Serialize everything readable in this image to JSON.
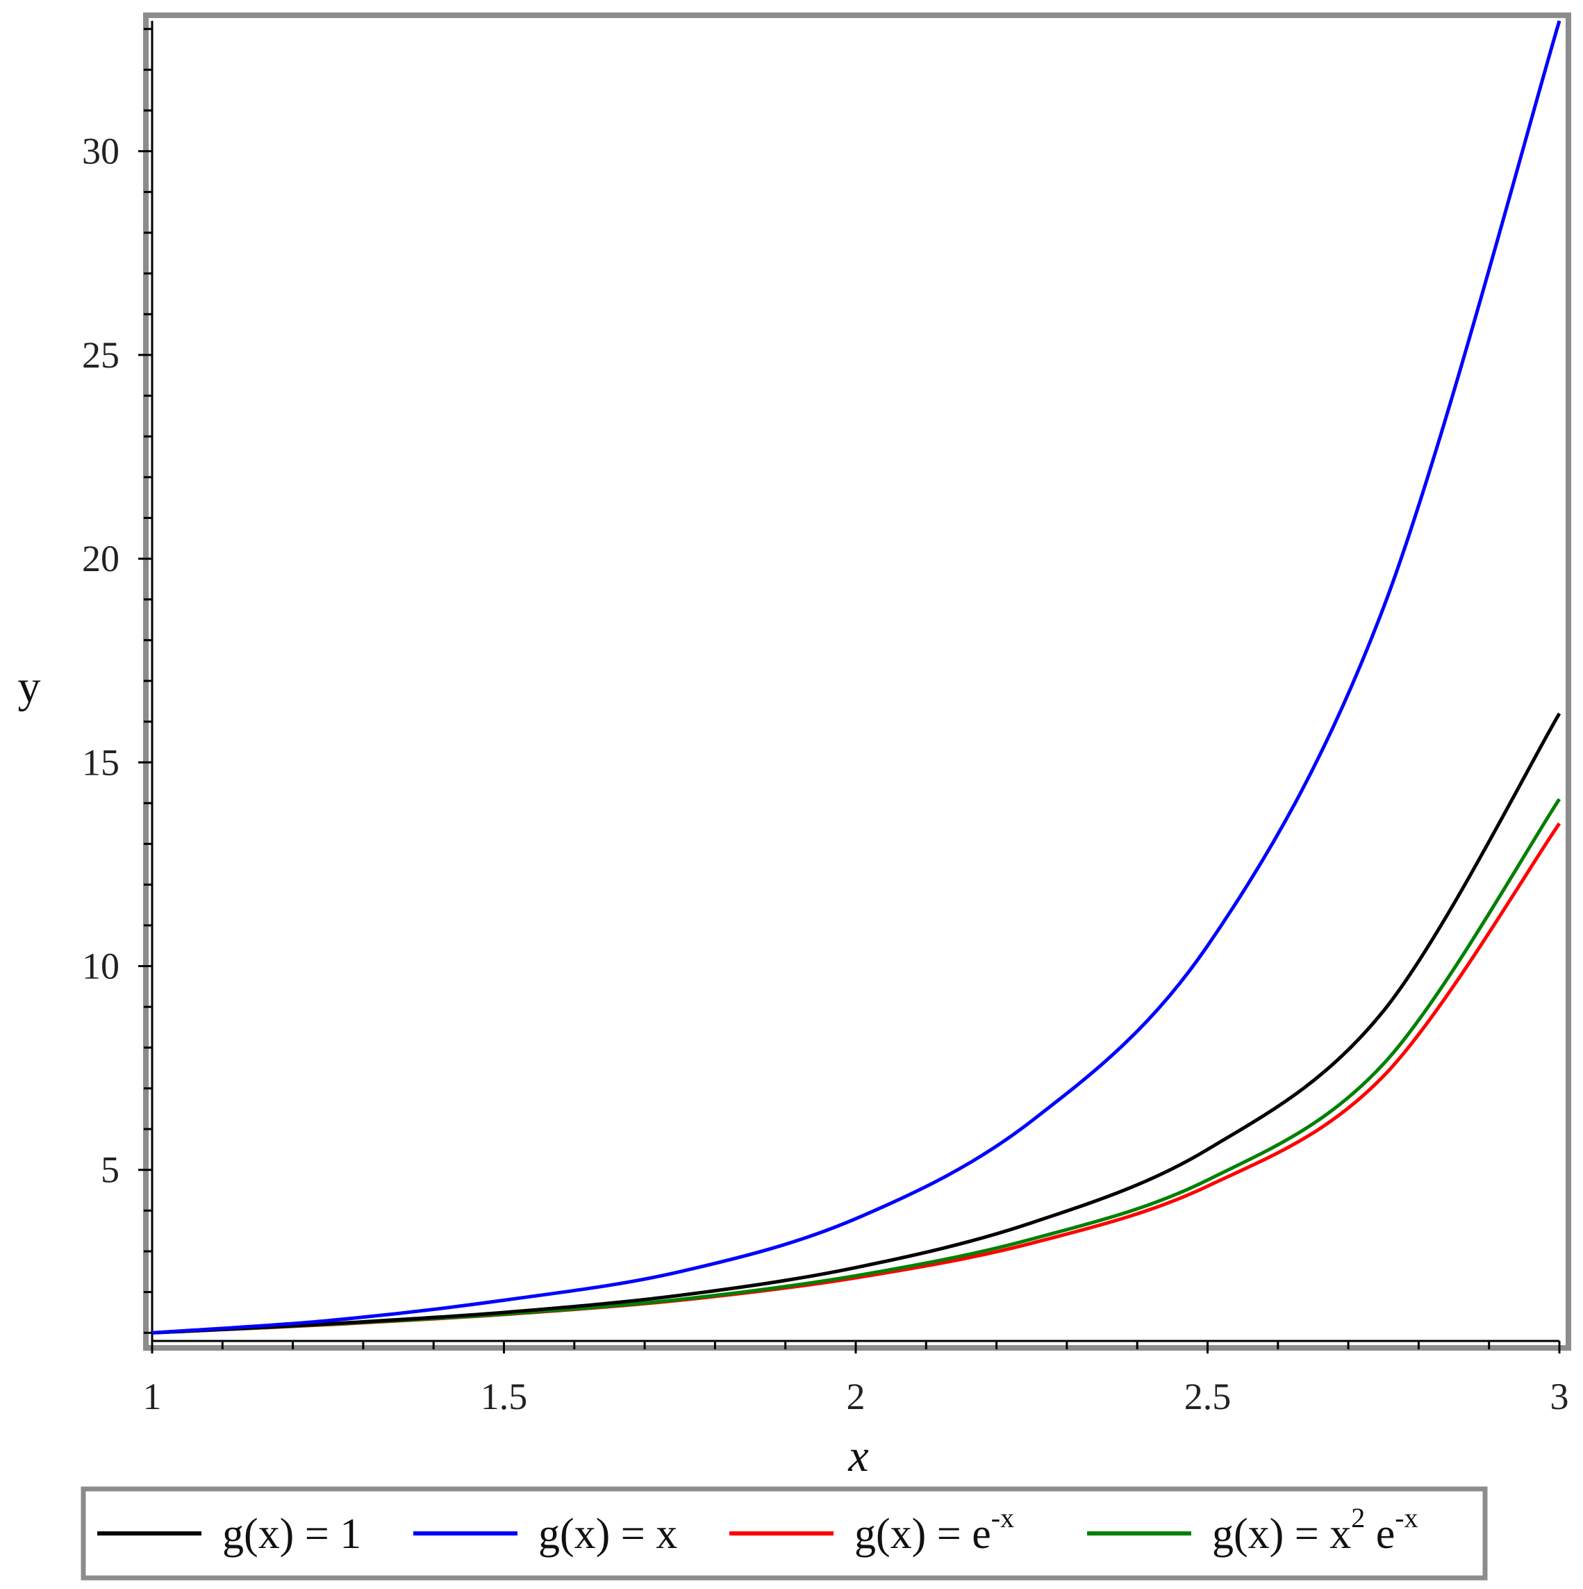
{
  "chart_data": {
    "type": "line",
    "title": "",
    "xlabel": "x",
    "ylabel": "y",
    "xlim": [
      1,
      3
    ],
    "ylim": [
      0.8,
      33.2
    ],
    "x_ticks": [
      "1",
      "1.5",
      "2",
      "2.5",
      "3"
    ],
    "y_ticks": [
      "5",
      "10",
      "15",
      "20",
      "25",
      "30"
    ],
    "grid": false,
    "legend_position": "bottom",
    "series": [
      {
        "name": "g(x) = 1",
        "color": "#000000",
        "x": [
          1.0,
          1.25,
          1.5,
          1.75,
          2.0,
          2.25,
          2.5,
          2.75,
          3.0
        ],
        "y": [
          1.0,
          1.22,
          1.5,
          1.92,
          2.6,
          3.7,
          5.5,
          8.9,
          16.2
        ]
      },
      {
        "name": "g(x) = x",
        "color": "#0000ff",
        "x": [
          1.0,
          1.25,
          1.5,
          1.75,
          2.0,
          2.25,
          2.5,
          2.75,
          3.0
        ],
        "y": [
          1.0,
          1.3,
          1.8,
          2.5,
          3.8,
          6.2,
          10.5,
          18.8,
          33.2
        ]
      },
      {
        "name": "g(x) = e^(-x)",
        "color": "#ff0000",
        "x": [
          1.0,
          1.25,
          1.5,
          1.75,
          2.0,
          2.25,
          2.5,
          2.75,
          3.0
        ],
        "y": [
          1.0,
          1.2,
          1.45,
          1.8,
          2.35,
          3.2,
          4.6,
          7.3,
          13.5
        ]
      },
      {
        "name": "g(x) = x^2 e^(-x)",
        "color": "#008000",
        "x": [
          1.0,
          1.25,
          1.5,
          1.75,
          2.0,
          2.25,
          2.5,
          2.75,
          3.0
        ],
        "y": [
          1.0,
          1.21,
          1.46,
          1.82,
          2.4,
          3.3,
          4.75,
          7.6,
          14.1
        ]
      }
    ]
  },
  "legend": {
    "items": [
      {
        "prefix": "g(x) = 1",
        "sup": "",
        "suffix": "",
        "sup2": ""
      },
      {
        "prefix": "g(x) = x",
        "sup": "",
        "suffix": "",
        "sup2": ""
      },
      {
        "prefix": "g(x) = e",
        "sup": "-x",
        "suffix": "",
        "sup2": ""
      },
      {
        "prefix": "g(x) = x",
        "sup": "2",
        "suffix": " e",
        "sup2": "-x"
      }
    ]
  }
}
